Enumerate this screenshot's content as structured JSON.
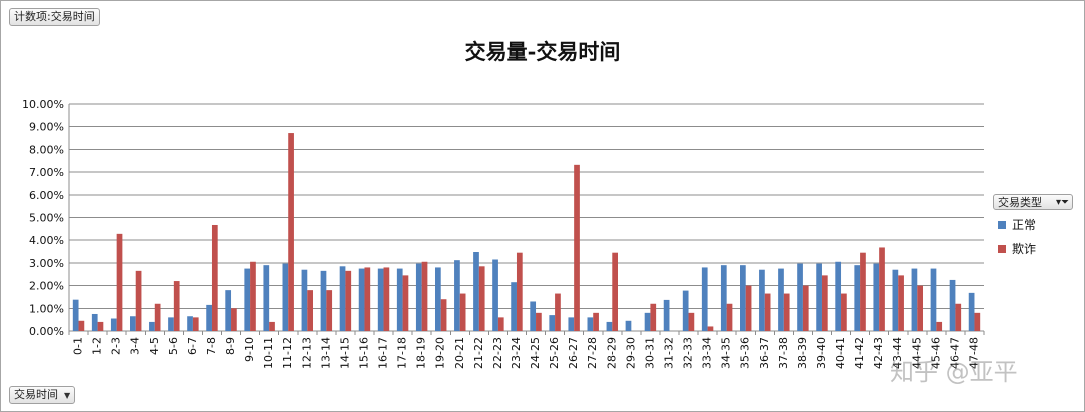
{
  "filter_buttons": {
    "top_label": "计数项:交易时间",
    "bottom_label": "交易时间"
  },
  "legend": {
    "header": "交易类型",
    "items": [
      "正常",
      "欺诈"
    ]
  },
  "colors": {
    "normal": "#4f81bd",
    "fraud": "#c0504d"
  },
  "watermark": "知乎 @亚平",
  "chart_data": {
    "type": "bar",
    "title": "交易量-交易时间",
    "xlabel": "",
    "ylabel": "",
    "ylim": [
      0,
      0.1
    ],
    "yticks": [
      "0.00%",
      "1.00%",
      "2.00%",
      "3.00%",
      "4.00%",
      "5.00%",
      "6.00%",
      "7.00%",
      "8.00%",
      "9.00%",
      "10.00%"
    ],
    "grid": true,
    "legend_position": "right",
    "categories": [
      "0-1",
      "1-2",
      "2-3",
      "3-4",
      "4-5",
      "5-6",
      "6-7",
      "7-8",
      "8-9",
      "9-10",
      "10-11",
      "11-12",
      "12-13",
      "13-14",
      "14-15",
      "15-16",
      "16-17",
      "17-18",
      "18-19",
      "19-20",
      "20-21",
      "21-22",
      "22-23",
      "23-24",
      "24-25",
      "25-26",
      "26-27",
      "27-28",
      "28-29",
      "29-30",
      "30-31",
      "31-32",
      "32-33",
      "33-34",
      "34-35",
      "35-36",
      "36-37",
      "37-38",
      "38-39",
      "39-40",
      "40-41",
      "41-42",
      "42-43",
      "43-44",
      "44-45",
      "45-46",
      "46-47",
      "47-48"
    ],
    "series": [
      {
        "name": "正常",
        "values": [
          0.0138,
          0.0075,
          0.0055,
          0.0065,
          0.004,
          0.006,
          0.0065,
          0.0115,
          0.018,
          0.0275,
          0.029,
          0.0297,
          0.027,
          0.0265,
          0.0285,
          0.0275,
          0.0275,
          0.0275,
          0.0297,
          0.028,
          0.0312,
          0.0348,
          0.0315,
          0.0215,
          0.013,
          0.007,
          0.006,
          0.006,
          0.004,
          0.0045,
          0.008,
          0.0137,
          0.0178,
          0.028,
          0.029,
          0.029,
          0.027,
          0.0275,
          0.0297,
          0.0297,
          0.0305,
          0.029,
          0.0297,
          0.027,
          0.0275,
          0.0275,
          0.0225,
          0.0168
        ]
      },
      {
        "name": "欺诈",
        "values": [
          0.0045,
          0.004,
          0.0428,
          0.0265,
          0.012,
          0.022,
          0.006,
          0.0467,
          0.01,
          0.0305,
          0.004,
          0.0872,
          0.018,
          0.018,
          0.0265,
          0.028,
          0.028,
          0.0245,
          0.0305,
          0.014,
          0.0165,
          0.0285,
          0.006,
          0.0345,
          0.008,
          0.0165,
          0.0732,
          0.008,
          0.0345,
          0.0,
          0.012,
          0.0,
          0.008,
          0.002,
          0.012,
          0.02,
          0.0165,
          0.0165,
          0.02,
          0.0245,
          0.0165,
          0.0345,
          0.0368,
          0.0245,
          0.02,
          0.004,
          0.012,
          0.008
        ]
      }
    ]
  }
}
